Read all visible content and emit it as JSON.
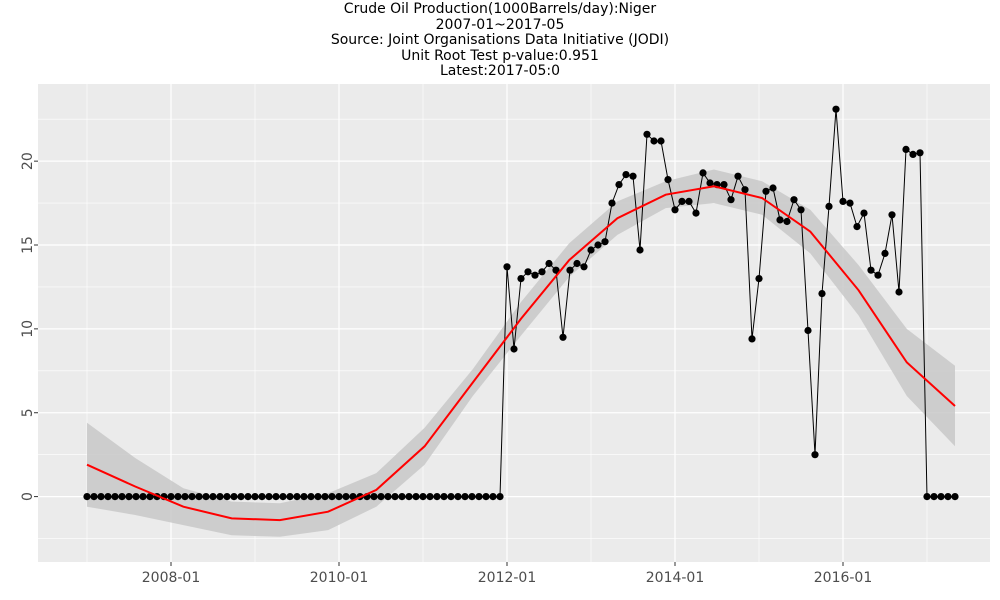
{
  "title_lines": [
    "Crude Oil Production(1000Barrels/day):Niger",
    "2007-01~2017-05",
    "Source: Joint Organisations Data Initiative (JODI)",
    "Unit Root Test p-value:0.951",
    "Latest:2017-05:0"
  ],
  "colors": {
    "panel": "#ebebeb",
    "grid": "#ffffff",
    "line": "#000000",
    "smooth": "#ff0000",
    "ribbon": "#c8c8c8",
    "points": "#000000",
    "tick_text": "#4d4d4d"
  },
  "chart_data": {
    "type": "line",
    "title": "Crude Oil Production(1000Barrels/day):Niger",
    "xlabel": "",
    "ylabel": "",
    "x_ticks": [
      "2008-01",
      "2010-01",
      "2012-01",
      "2014-01",
      "2016-01"
    ],
    "y_ticks": [
      0,
      5,
      10,
      15,
      20
    ],
    "ylim": [
      -3.9,
      24.6
    ],
    "xlim": [
      "2006-06",
      "2017-10"
    ],
    "grid": true,
    "legend": "none",
    "start": "2007-01",
    "series": [
      {
        "values": [
          0,
          0,
          0,
          0,
          0,
          0,
          0,
          0,
          0,
          0,
          0,
          0,
          0,
          0,
          0,
          0,
          0,
          0,
          0,
          0,
          0,
          0,
          0,
          0,
          0,
          0,
          0,
          0,
          0,
          0,
          0,
          0,
          0,
          0,
          0,
          0,
          0,
          0,
          0,
          0,
          0,
          0,
          0,
          0,
          0,
          0,
          0,
          0,
          0,
          0,
          0,
          0,
          0,
          0,
          0,
          0,
          0,
          0,
          0,
          0,
          13.7,
          8.8,
          13.0,
          13.4,
          13.2,
          13.4,
          13.9,
          13.5,
          9.5,
          13.5,
          13.9,
          13.7,
          14.7,
          15.0,
          15.2,
          17.5,
          18.6,
          19.2,
          19.1,
          14.7,
          21.6,
          21.2,
          21.2,
          18.9,
          17.1,
          17.6,
          17.6,
          16.9,
          19.3,
          18.7,
          18.6,
          18.6,
          17.7,
          19.1,
          18.3,
          9.4,
          13.0,
          18.2,
          18.4,
          16.5,
          16.4,
          17.7,
          17.1,
          9.9,
          2.5,
          12.1,
          17.3,
          23.1,
          17.6,
          17.5,
          16.1,
          16.9,
          13.5,
          13.2,
          14.5,
          16.8,
          12.2,
          20.7,
          20.4,
          20.5,
          0,
          0,
          0,
          0,
          0
        ]
      }
    ],
    "smooth_fit": {
      "values": [
        1.9,
        0.6,
        -0.6,
        -1.3,
        -1.4,
        -0.9,
        0.4,
        3.0,
        6.8,
        10.6,
        14.1,
        16.6,
        18.0,
        18.5,
        17.8,
        15.8,
        12.3,
        8.0,
        5.4
      ],
      "lower": [
        -0.6,
        -1.1,
        -1.7,
        -2.3,
        -2.4,
        -2.0,
        -0.6,
        1.9,
        6.0,
        9.6,
        13.1,
        15.6,
        17.2,
        17.5,
        16.8,
        14.5,
        10.8,
        6.0,
        3.0
      ],
      "upper": [
        4.4,
        2.3,
        0.5,
        -0.3,
        -0.4,
        0.2,
        1.4,
        4.1,
        7.6,
        11.6,
        15.1,
        17.6,
        18.8,
        19.5,
        18.8,
        17.1,
        13.8,
        10.0,
        7.8
      ]
    }
  }
}
